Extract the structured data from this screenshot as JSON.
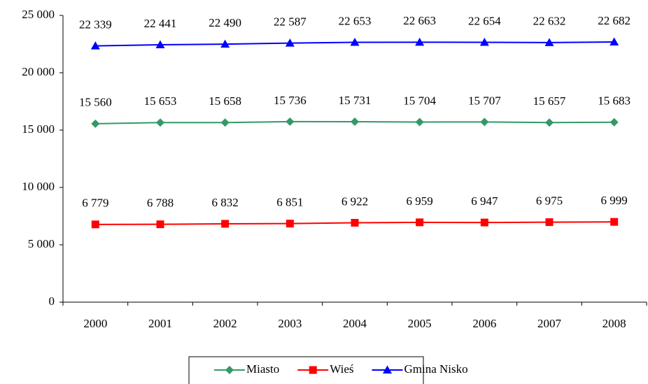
{
  "chart_data": {
    "type": "line",
    "categories": [
      "2000",
      "2001",
      "2002",
      "2003",
      "2004",
      "2005",
      "2006",
      "2007",
      "2008"
    ],
    "series": [
      {
        "name": "Miasto",
        "color": "#339966",
        "marker": "diamond",
        "values": [
          15560,
          15653,
          15658,
          15736,
          15731,
          15704,
          15707,
          15657,
          15683
        ],
        "value_labels": [
          "15 560",
          "15 653",
          "15 658",
          "15 736",
          "15 731",
          "15 704",
          "15 707",
          "15 657",
          "15 683"
        ]
      },
      {
        "name": "Wieś",
        "color": "#ff0000",
        "marker": "square",
        "values": [
          6779,
          6788,
          6832,
          6851,
          6922,
          6959,
          6947,
          6975,
          6999
        ],
        "value_labels": [
          "6 779",
          "6 788",
          "6 832",
          "6 851",
          "6 922",
          "6 959",
          "6 947",
          "6 975",
          "6 999"
        ]
      },
      {
        "name": "Gmina Nisko",
        "color": "#0000ff",
        "marker": "triangle",
        "values": [
          22339,
          22441,
          22490,
          22587,
          22653,
          22663,
          22654,
          22632,
          22682
        ],
        "value_labels": [
          "22 339",
          "22 441",
          "22 490",
          "22 587",
          "22 653",
          "22 663",
          "22 654",
          "22 632",
          "22 682"
        ]
      }
    ],
    "ylim": [
      0,
      25000
    ],
    "yticks": [
      0,
      {
        "value": 5000,
        "label": "5 000"
      },
      {
        "value": 10000,
        "label": "10 000"
      },
      {
        "value": 15000,
        "label": "15 000"
      },
      {
        "value": 20000,
        "label": "20 000"
      },
      {
        "value": 25000,
        "label": "25 000"
      }
    ],
    "legend": "bottom"
  }
}
